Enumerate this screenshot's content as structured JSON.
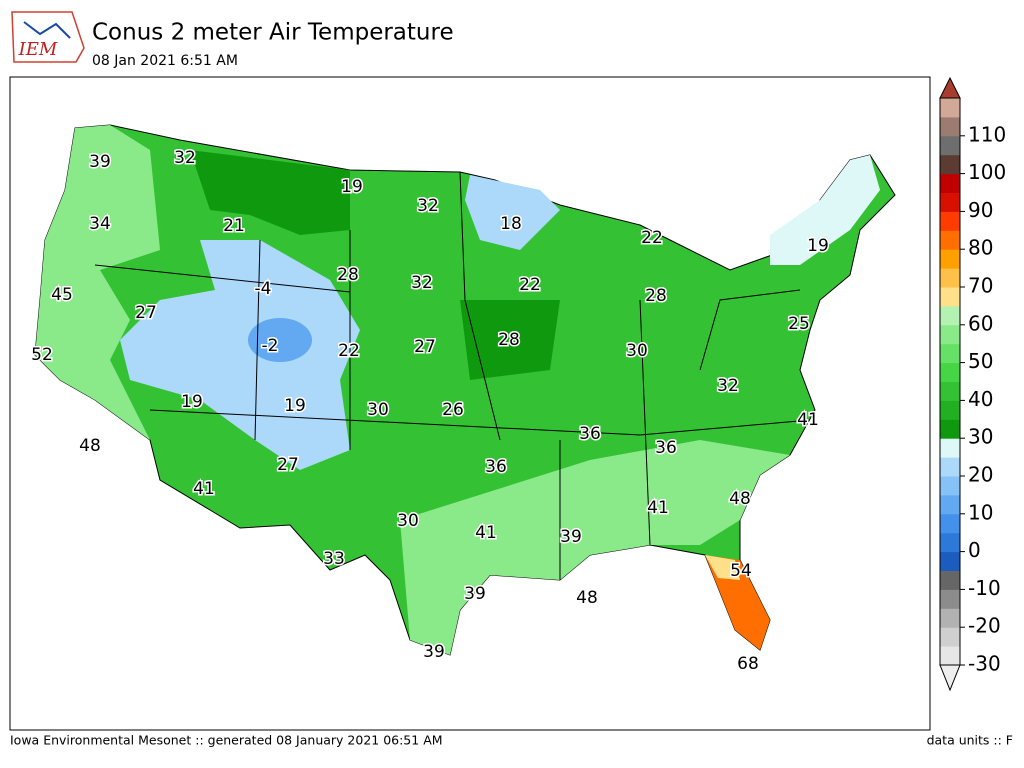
{
  "header": {
    "title": "Conus 2 meter Air Temperature",
    "subtitle": "08 Jan 2021 6:51 AM",
    "logo": "IEM"
  },
  "footer": {
    "left": "Iowa Environmental Mesonet :: generated 08 January 2021 06:51 AM",
    "right": "data units :: F"
  },
  "map": {
    "station_values": [
      39,
      32,
      19,
      32,
      18,
      22,
      19,
      34,
      21,
      28,
      32,
      22,
      28,
      -4,
      45,
      27,
      -2,
      22,
      27,
      28,
      30,
      25,
      52,
      19,
      19,
      30,
      26,
      36,
      36,
      32,
      41,
      48,
      27,
      41,
      36,
      48,
      41,
      30,
      41,
      39,
      33,
      54,
      39,
      48,
      39,
      68
    ]
  },
  "colorbar": {
    "range": [
      -30,
      120
    ],
    "ticks": [
      -30,
      -20,
      -10,
      0,
      10,
      20,
      30,
      40,
      50,
      60,
      70,
      80,
      90,
      100,
      110
    ],
    "colors": [
      "#e6e6e6",
      "#cfcfcf",
      "#b2b2b2",
      "#8c8c8c",
      "#666666",
      "#1c5cbf",
      "#2d79d9",
      "#4391ea",
      "#62a9f2",
      "#86c2f6",
      "#acd8f9",
      "#def8f8",
      "#0f990f",
      "#22b022",
      "#34c234",
      "#45d545",
      "#66e066",
      "#8aea8a",
      "#b4f2b4",
      "#ffe08a",
      "#ffc04a",
      "#ffa000",
      "#ff6e00",
      "#ff3c00",
      "#d81000",
      "#c00000",
      "#5c3c32",
      "#6e6e6e",
      "#9c7c70",
      "#d2a898"
    ],
    "under_color": "#eeeeee",
    "over_color": "#a83c30"
  }
}
